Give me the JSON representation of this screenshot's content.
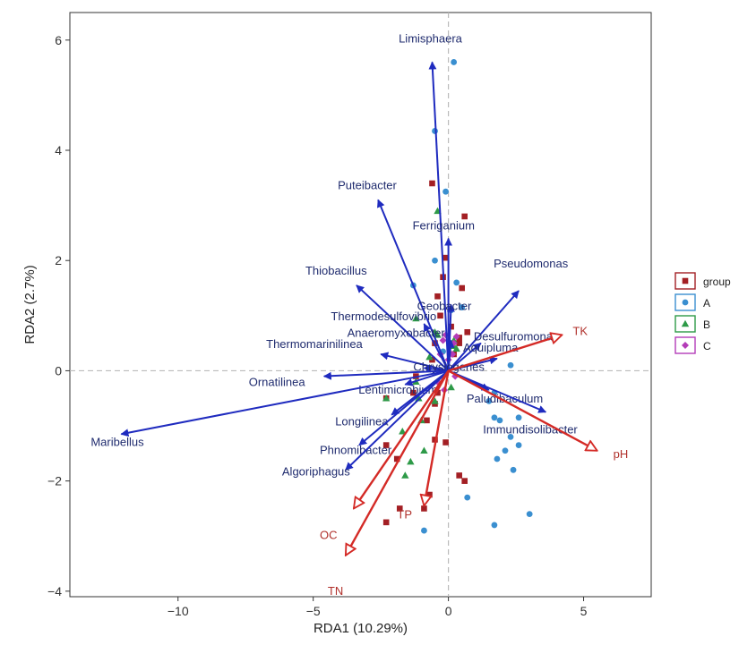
{
  "chart_data": {
    "type": "scatter",
    "xlabel": "RDA1 (10.29%)",
    "ylabel": "RDA2 (2.7%)",
    "xlim": [
      -14,
      7.5
    ],
    "ylim": [
      -4.1,
      6.5
    ],
    "x_ticks": [
      -10,
      -5,
      0,
      5
    ],
    "y_ticks": [
      -4,
      -2,
      0,
      2,
      4,
      6
    ],
    "x_tick_labels": [
      "−10",
      "−5",
      "0",
      "5"
    ],
    "y_tick_labels": [
      "−4",
      "−2",
      "0",
      "2",
      "4",
      "6"
    ],
    "grid": false,
    "reference_lines": {
      "x": 0,
      "y": 0,
      "style": "dashed"
    },
    "legend": {
      "placement": "right",
      "title": "group",
      "entries": [
        {
          "label": "A",
          "color": "#3a8fd0",
          "shape": "circle"
        },
        {
          "label": "B",
          "color": "#2e9a48",
          "shape": "triangle"
        },
        {
          "label": "C",
          "color": "#b43cb8",
          "shape": "diamond"
        }
      ],
      "title_color": "#a31f24",
      "title_shape": "square"
    },
    "colors": {
      "species_arrow": "#1f2bbf",
      "env_arrow": "#d42a26",
      "group_point": "#a31f24",
      "A": "#3a8fd0",
      "B": "#2e9a48",
      "C": "#b43cb8"
    },
    "species_arrows": [
      {
        "name": "Limisphaera",
        "x": -0.6,
        "y": 5.6
      },
      {
        "name": "Puteibacter",
        "x": -2.6,
        "y": 3.1
      },
      {
        "name": "Ferriganium",
        "x": 0.0,
        "y": 2.4
      },
      {
        "name": "Thiobacillus",
        "x": -3.4,
        "y": 1.55
      },
      {
        "name": "Pseudomonas",
        "x": 2.6,
        "y": 1.45
      },
      {
        "name": "Geobacter",
        "x": 0.1,
        "y": 1.2
      },
      {
        "name": "Thermodesulfovibrio",
        "x": -0.9,
        "y": 0.85
      },
      {
        "name": "Anaeromyxobacter",
        "x": 0.1,
        "y": 0.55
      },
      {
        "name": "Desulfuromonas",
        "x": 1.2,
        "y": 0.5
      },
      {
        "name": "Thermomarinilinea",
        "x": -2.5,
        "y": 0.3
      },
      {
        "name": "Aquipluma",
        "x": 1.8,
        "y": 0.22
      },
      {
        "name": "Chrysiogenes",
        "x": -0.9,
        "y": 0.05
      },
      {
        "name": "Ornatilinea",
        "x": -4.6,
        "y": -0.1
      },
      {
        "name": "Lentimicrobium",
        "x": -1.6,
        "y": -0.25
      },
      {
        "name": "Paludibaculum",
        "x": 1.5,
        "y": -0.35
      },
      {
        "name": "Immundisolibacter",
        "x": 3.6,
        "y": -0.75
      },
      {
        "name": "Longilinea",
        "x": -2.1,
        "y": -0.8
      },
      {
        "name": "Maribellus",
        "x": -12.1,
        "y": -1.15
      },
      {
        "name": "Phnomibacter",
        "x": -3.3,
        "y": -1.35
      },
      {
        "name": "Algoriphagus",
        "x": -3.8,
        "y": -1.8
      }
    ],
    "env_arrows": [
      {
        "name": "TK",
        "x": 4.2,
        "y": 0.65
      },
      {
        "name": "pH",
        "x": 5.5,
        "y": -1.45
      },
      {
        "name": "OC",
        "x": -3.5,
        "y": -2.5
      },
      {
        "name": "TN",
        "x": -3.8,
        "y": -3.35
      },
      {
        "name": "TP",
        "x": -0.9,
        "y": -2.45
      }
    ],
    "points": {
      "group": [
        [
          -0.6,
          3.4
        ],
        [
          0.6,
          2.8
        ],
        [
          -0.1,
          2.05
        ],
        [
          -0.2,
          1.7
        ],
        [
          0.5,
          1.5
        ],
        [
          -0.4,
          1.35
        ],
        [
          -0.3,
          1.0
        ],
        [
          0.1,
          0.8
        ],
        [
          0.4,
          0.6
        ],
        [
          0.7,
          0.7
        ],
        [
          0.4,
          0.5
        ],
        [
          0.2,
          0.3
        ],
        [
          -0.5,
          0.5
        ],
        [
          -0.6,
          0.2
        ],
        [
          -0.4,
          -0.4
        ],
        [
          -1.2,
          -0.1
        ],
        [
          -2.3,
          -0.5
        ],
        [
          -0.8,
          -0.9
        ],
        [
          -0.5,
          -1.25
        ],
        [
          -2.3,
          -1.35
        ],
        [
          -1.9,
          -1.6
        ],
        [
          -0.1,
          -1.3
        ],
        [
          0.6,
          -2.0
        ],
        [
          -0.7,
          -2.25
        ],
        [
          -1.8,
          -2.5
        ],
        [
          -0.9,
          -2.5
        ],
        [
          -2.3,
          -2.75
        ],
        [
          0.4,
          -1.9
        ],
        [
          -0.5,
          -0.6
        ],
        [
          -1.3,
          -0.4
        ]
      ],
      "A": [
        [
          0.2,
          5.6
        ],
        [
          -0.5,
          4.35
        ],
        [
          -0.1,
          3.25
        ],
        [
          -0.5,
          2.0
        ],
        [
          -1.3,
          1.55
        ],
        [
          0.3,
          1.6
        ],
        [
          0.1,
          1.1
        ],
        [
          0.5,
          1.15
        ],
        [
          2.3,
          0.1
        ],
        [
          1.7,
          -0.4
        ],
        [
          2.6,
          -0.85
        ],
        [
          1.7,
          -0.85
        ],
        [
          1.9,
          -0.9
        ],
        [
          2.3,
          -1.2
        ],
        [
          2.6,
          -1.35
        ],
        [
          2.1,
          -1.45
        ],
        [
          1.8,
          -1.6
        ],
        [
          2.4,
          -1.8
        ],
        [
          0.7,
          -2.3
        ],
        [
          1.7,
          -2.8
        ],
        [
          3.0,
          -2.6
        ],
        [
          -0.9,
          -2.9
        ],
        [
          1.5,
          -0.55
        ],
        [
          -0.2,
          0.35
        ]
      ],
      "B": [
        [
          -1.2,
          0.95
        ],
        [
          -0.4,
          2.9
        ],
        [
          -1.1,
          -0.5
        ],
        [
          -1.2,
          -0.2
        ],
        [
          -0.4,
          0.65
        ],
        [
          0.2,
          0.55
        ],
        [
          -0.5,
          -0.55
        ],
        [
          -2.3,
          -0.5
        ],
        [
          -1.0,
          -0.9
        ],
        [
          -1.4,
          -1.65
        ],
        [
          -1.6,
          -1.9
        ],
        [
          -0.9,
          -1.45
        ],
        [
          -0.5,
          0.7
        ],
        [
          0.2,
          0.45
        ],
        [
          -0.7,
          0.25
        ],
        [
          0.3,
          0.4
        ],
        [
          0.1,
          -0.3
        ],
        [
          -1.7,
          -1.1
        ]
      ],
      "C": [
        [
          -0.2,
          0.55
        ],
        [
          0.2,
          0.5
        ],
        [
          0.3,
          0.62
        ],
        [
          -0.1,
          0.65
        ],
        [
          0.0,
          0.2
        ],
        [
          -0.3,
          0.3
        ],
        [
          0.15,
          0.3
        ],
        [
          -0.4,
          -0.2
        ],
        [
          0.25,
          -0.1
        ],
        [
          -0.15,
          -0.35
        ]
      ]
    }
  }
}
